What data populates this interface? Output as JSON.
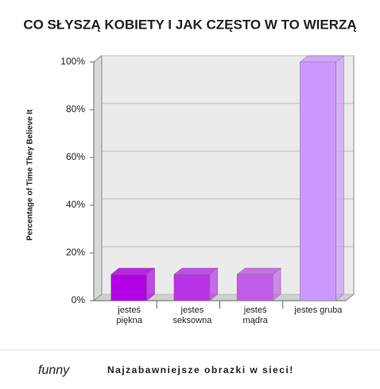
{
  "chart_data": {
    "type": "bar",
    "title": "CO SŁYSZĄ KOBIETY I JAK CZĘSTO W TO WIERZĄ",
    "y_label": "Percentage of Time They Believe It",
    "categories": [
      "jesteś\npiękna",
      "jestes\nseksowna",
      "jesteś\nmądra",
      "jestes gruba"
    ],
    "values": [
      11,
      11,
      11,
      100
    ],
    "colors": [
      "#b300e6",
      "#b833e6",
      "#bf5ce8",
      "#cc99ff"
    ],
    "ylim": [
      0,
      100
    ],
    "yticks": [
      {
        "value": 0,
        "label": "0%"
      },
      {
        "value": 20,
        "label": "20%"
      },
      {
        "value": 40,
        "label": "40%"
      },
      {
        "value": 60,
        "label": "60%"
      },
      {
        "value": 80,
        "label": "80%"
      },
      {
        "value": 100,
        "label": "100%"
      }
    ],
    "grid": true
  },
  "footer": {
    "logo": "funny",
    "tagline": "Najzabawniejsze obrazki w sieci!"
  }
}
